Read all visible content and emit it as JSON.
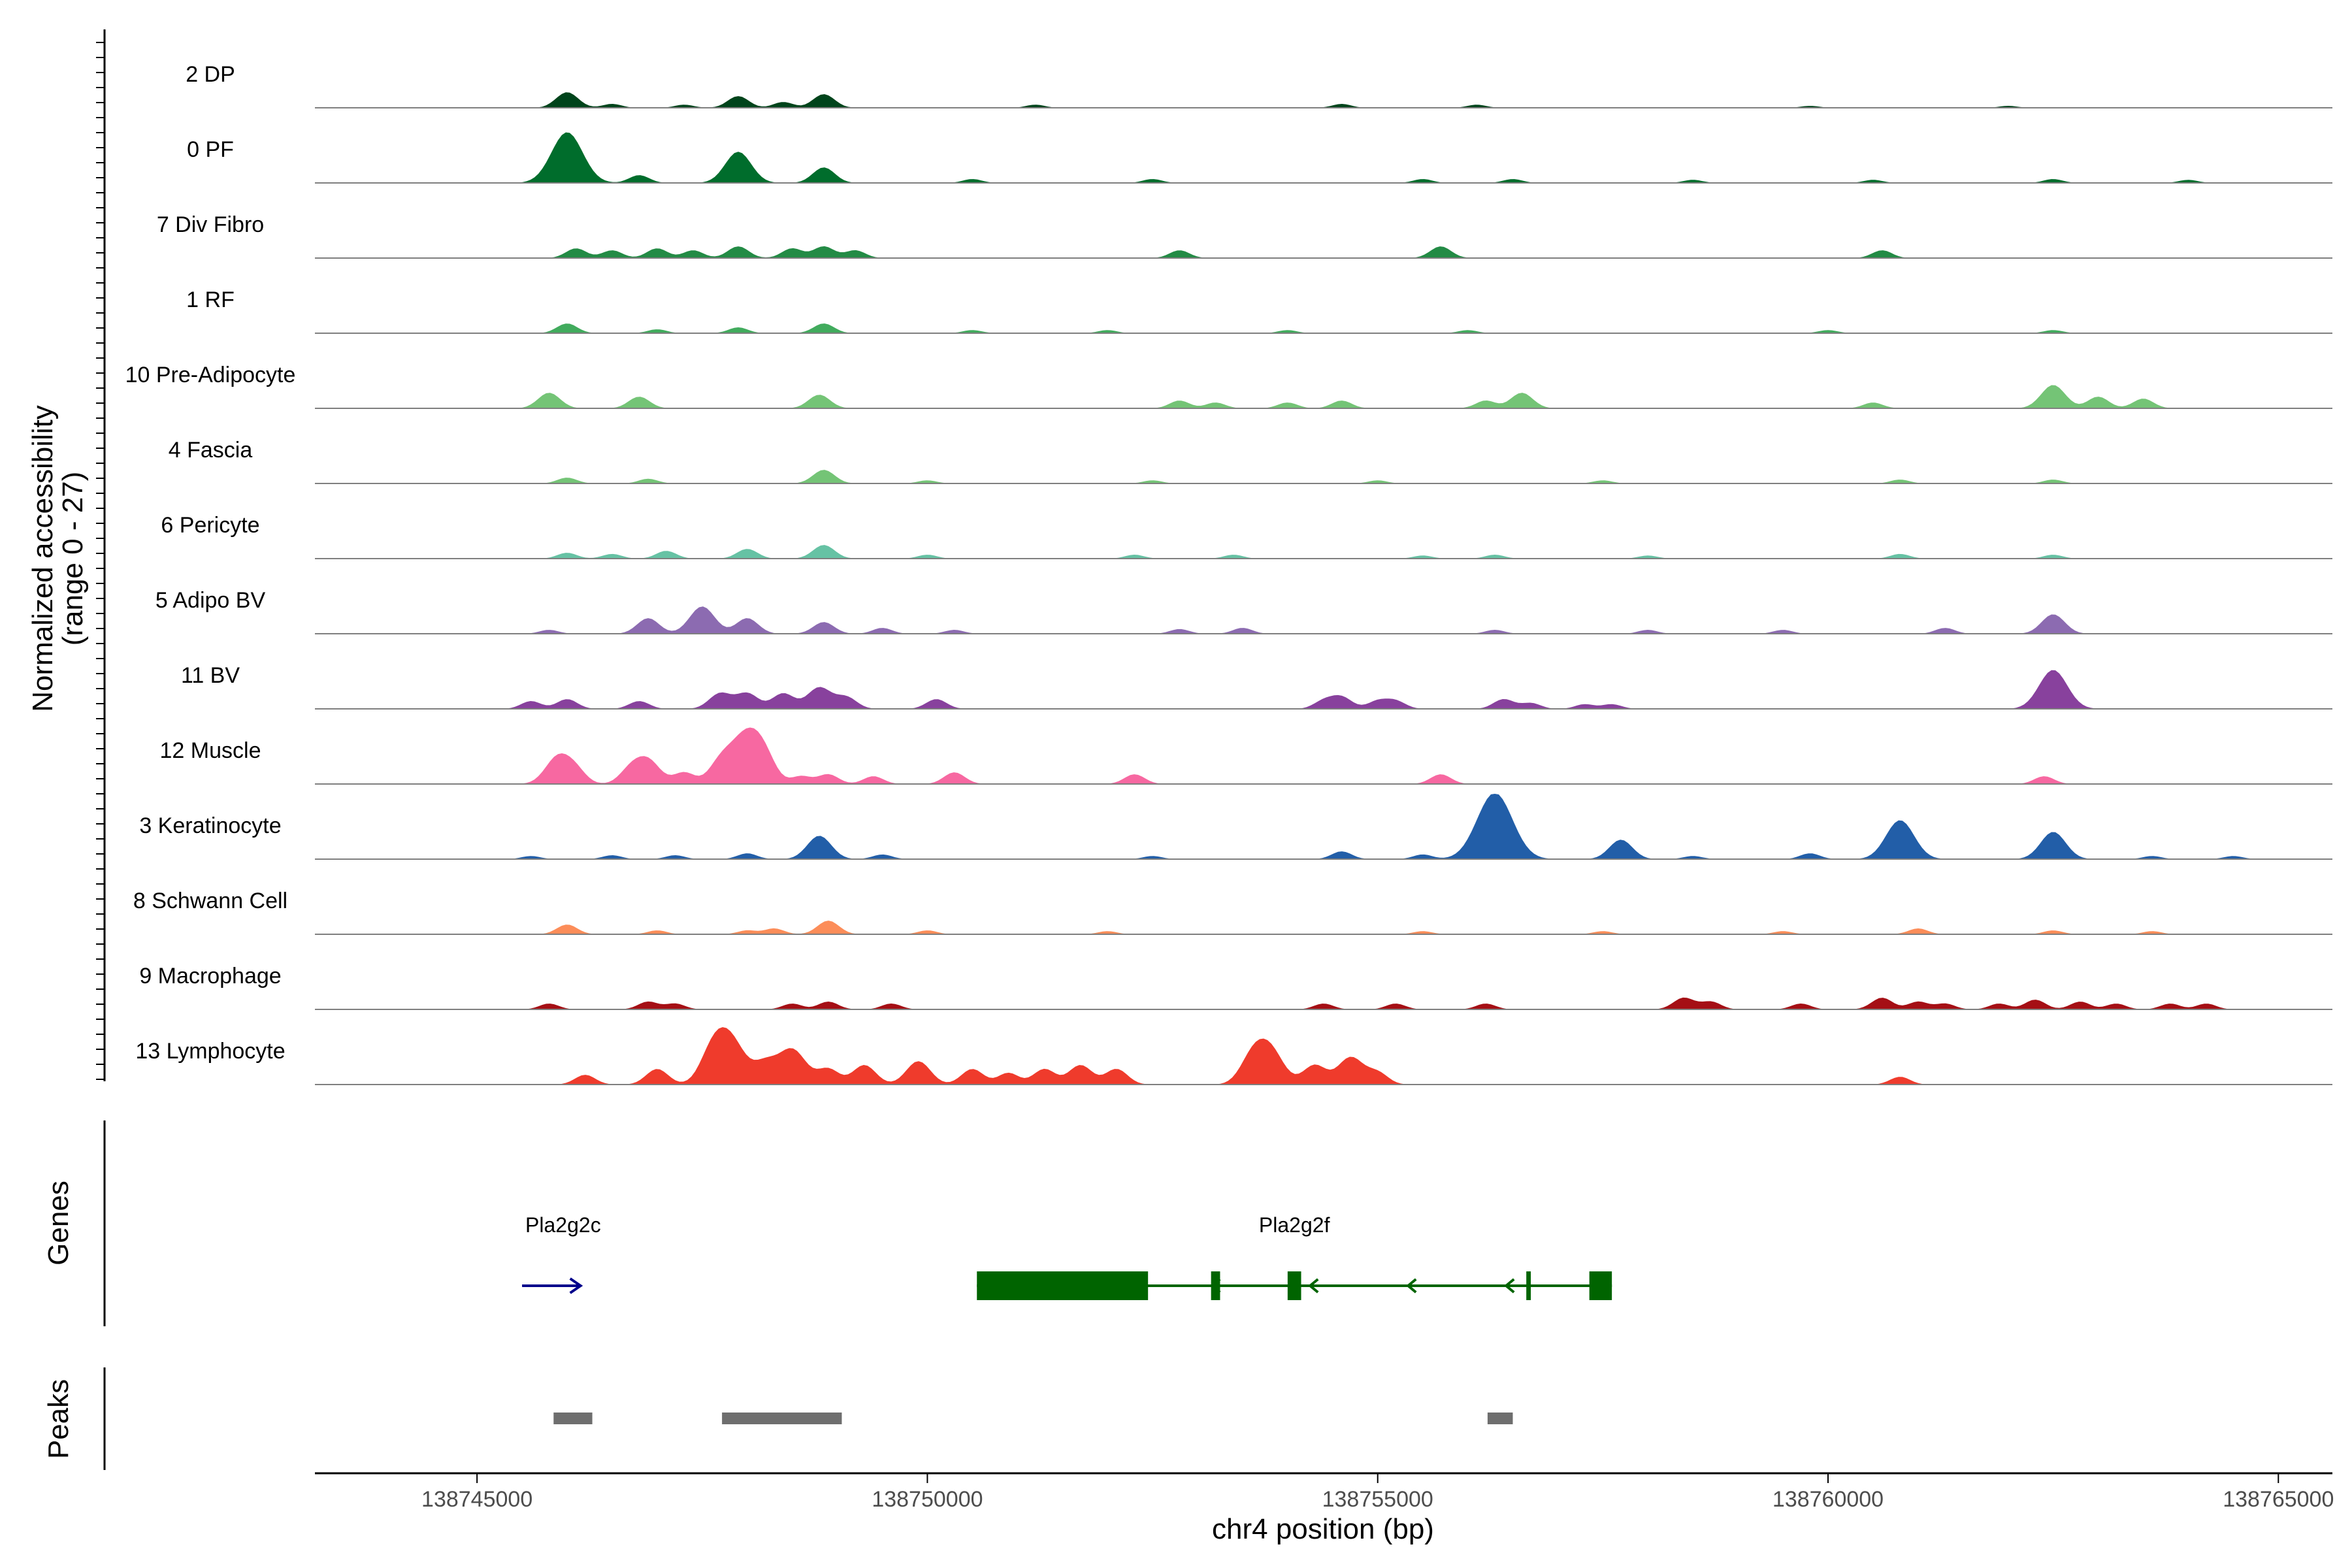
{
  "chart_data": {
    "type": "area",
    "title": "",
    "ylabel": "Normalized accessibility (range 0 - 27)",
    "ylabel_lines": [
      "Normalized accessibility",
      "(range 0 - 27)"
    ],
    "y_range": [
      0,
      27
    ],
    "xlabel": "chr4 position (bp)",
    "x_range": [
      138743200,
      138765600
    ],
    "x_ticks": [
      138745000,
      138750000,
      138755000,
      138760000,
      138765000
    ],
    "x_tick_labels": [
      "138745000",
      "138750000",
      "138755000",
      "138760000",
      "138765000"
    ],
    "tracks": [
      {
        "name": "2 DP",
        "color": "#00441b",
        "peaks": [
          [
            138746000,
            4
          ],
          [
            138746500,
            1
          ],
          [
            138747300,
            0.8
          ],
          [
            138747900,
            3
          ],
          [
            138748400,
            1.5
          ],
          [
            138748850,
            3.5
          ],
          [
            138751200,
            0.8
          ],
          [
            138754600,
            1
          ],
          [
            138756100,
            0.8
          ],
          [
            138759800,
            0.5
          ],
          [
            138762000,
            0.5
          ]
        ]
      },
      {
        "name": "0 PF",
        "color": "#006d2c",
        "peaks": [
          [
            138746000,
            13
          ],
          [
            138746800,
            2
          ],
          [
            138747900,
            8
          ],
          [
            138748850,
            4
          ],
          [
            138750500,
            1
          ],
          [
            138752500,
            1
          ],
          [
            138755500,
            1
          ],
          [
            138756500,
            1
          ],
          [
            138758500,
            0.8
          ],
          [
            138760500,
            0.8
          ],
          [
            138762500,
            1
          ],
          [
            138764000,
            0.8
          ]
        ]
      },
      {
        "name": "7 Div Fibro",
        "color": "#238b45",
        "peaks": [
          [
            138746100,
            2.5
          ],
          [
            138746500,
            2
          ],
          [
            138747000,
            2.5
          ],
          [
            138747400,
            2
          ],
          [
            138747900,
            3
          ],
          [
            138748500,
            2.5
          ],
          [
            138748850,
            3
          ],
          [
            138749200,
            2
          ],
          [
            138752800,
            2
          ],
          [
            138755700,
            3
          ],
          [
            138760600,
            2
          ]
        ]
      },
      {
        "name": "1 RF",
        "color": "#41ab5d",
        "peaks": [
          [
            138746000,
            2.5
          ],
          [
            138747000,
            1
          ],
          [
            138747900,
            1.5
          ],
          [
            138748850,
            2.5
          ],
          [
            138750500,
            0.8
          ],
          [
            138752000,
            0.8
          ],
          [
            138754000,
            0.8
          ],
          [
            138756000,
            0.8
          ],
          [
            138760000,
            0.8
          ],
          [
            138762500,
            0.8
          ]
        ]
      },
      {
        "name": "10 Pre-Adipocyte",
        "color": "#74c476",
        "peaks": [
          [
            138745800,
            4
          ],
          [
            138746800,
            3
          ],
          [
            138748800,
            3.5
          ],
          [
            138752800,
            2
          ],
          [
            138753200,
            1.5
          ],
          [
            138754000,
            1.5
          ],
          [
            138754600,
            2
          ],
          [
            138756200,
            2
          ],
          [
            138756600,
            4
          ],
          [
            138760500,
            1.5
          ],
          [
            138762500,
            6
          ],
          [
            138763000,
            3
          ],
          [
            138763500,
            2.5
          ]
        ]
      },
      {
        "name": "4 Fascia",
        "color": "#74c476",
        "peaks": [
          [
            138746000,
            1.5
          ],
          [
            138746900,
            1.2
          ],
          [
            138748850,
            3.5
          ],
          [
            138750000,
            0.8
          ],
          [
            138752500,
            0.8
          ],
          [
            138755000,
            0.8
          ],
          [
            138757500,
            0.8
          ],
          [
            138760800,
            1
          ],
          [
            138762500,
            1
          ]
        ]
      },
      {
        "name": "6 Pericyte",
        "color": "#66c2a4",
        "peaks": [
          [
            138746000,
            1.5
          ],
          [
            138746500,
            1.2
          ],
          [
            138747100,
            2
          ],
          [
            138748000,
            2.5
          ],
          [
            138748850,
            3.5
          ],
          [
            138750000,
            1
          ],
          [
            138752300,
            1
          ],
          [
            138753400,
            1
          ],
          [
            138755500,
            0.8
          ],
          [
            138756300,
            1
          ],
          [
            138758000,
            0.8
          ],
          [
            138760800,
            1.2
          ],
          [
            138762500,
            1
          ]
        ]
      },
      {
        "name": "5 Adipo BV",
        "color": "#8c6bb1",
        "peaks": [
          [
            138745800,
            1
          ],
          [
            138746900,
            4
          ],
          [
            138747500,
            7
          ],
          [
            138748000,
            4
          ],
          [
            138748850,
            3
          ],
          [
            138749500,
            1.5
          ],
          [
            138750300,
            1
          ],
          [
            138752800,
            1.2
          ],
          [
            138753500,
            1.5
          ],
          [
            138756300,
            1
          ],
          [
            138758000,
            1
          ],
          [
            138759500,
            1
          ],
          [
            138761300,
            1.5
          ],
          [
            138762500,
            5
          ]
        ]
      },
      {
        "name": "11 BV",
        "color": "#88419d",
        "peaks": [
          [
            138745600,
            2
          ],
          [
            138746000,
            2.5
          ],
          [
            138746800,
            2
          ],
          [
            138747700,
            4
          ],
          [
            138748000,
            4
          ],
          [
            138748400,
            4
          ],
          [
            138748800,
            5.5
          ],
          [
            138749100,
            3
          ],
          [
            138750100,
            2.5
          ],
          [
            138754400,
            2
          ],
          [
            138754600,
            3
          ],
          [
            138755000,
            2
          ],
          [
            138755200,
            2
          ],
          [
            138756400,
            2.5
          ],
          [
            138756700,
            1.5
          ],
          [
            138757300,
            1.2
          ],
          [
            138757600,
            1.2
          ],
          [
            138762500,
            10
          ]
        ]
      },
      {
        "name": "12 Muscle",
        "color": "#f768a1",
        "peaks": [
          [
            138745900,
            7
          ],
          [
            138746100,
            3
          ],
          [
            138746700,
            3.5
          ],
          [
            138746900,
            6
          ],
          [
            138747300,
            3
          ],
          [
            138747700,
            5
          ],
          [
            138748000,
            13
          ],
          [
            138748200,
            4
          ],
          [
            138748600,
            2
          ],
          [
            138748900,
            2.5
          ],
          [
            138749400,
            2
          ],
          [
            138750300,
            3
          ],
          [
            138752300,
            2.5
          ],
          [
            138755700,
            2.5
          ],
          [
            138762400,
            2
          ]
        ]
      },
      {
        "name": "3 Keratinocyte",
        "color": "#225ea8",
        "peaks": [
          [
            138745600,
            0.8
          ],
          [
            138746500,
            1
          ],
          [
            138747200,
            1
          ],
          [
            138748000,
            1.5
          ],
          [
            138748800,
            6
          ],
          [
            138749500,
            1.2
          ],
          [
            138752500,
            0.8
          ],
          [
            138754600,
            2
          ],
          [
            138755500,
            1.2
          ],
          [
            138756300,
            17
          ],
          [
            138757700,
            5
          ],
          [
            138758500,
            0.8
          ],
          [
            138759800,
            1.5
          ],
          [
            138760800,
            10
          ],
          [
            138762500,
            7
          ],
          [
            138763600,
            0.8
          ],
          [
            138764500,
            0.8
          ]
        ]
      },
      {
        "name": "8 Schwann Cell",
        "color": "#fc8d59",
        "peaks": [
          [
            138746000,
            2.5
          ],
          [
            138747000,
            1
          ],
          [
            138748000,
            1
          ],
          [
            138748300,
            1.5
          ],
          [
            138748900,
            3.5
          ],
          [
            138750000,
            1
          ],
          [
            138752000,
            0.8
          ],
          [
            138755500,
            0.8
          ],
          [
            138757500,
            0.8
          ],
          [
            138759500,
            0.8
          ],
          [
            138761000,
            1.5
          ],
          [
            138762500,
            1
          ],
          [
            138763600,
            0.8
          ]
        ]
      },
      {
        "name": "9 Macrophage",
        "color": "#a50f15",
        "peaks": [
          [
            138745800,
            1.5
          ],
          [
            138746900,
            2
          ],
          [
            138747200,
            1.5
          ],
          [
            138748500,
            1.5
          ],
          [
            138748900,
            2
          ],
          [
            138749600,
            1.5
          ],
          [
            138754400,
            1.5
          ],
          [
            138755200,
            1.5
          ],
          [
            138756200,
            1.5
          ],
          [
            138758400,
            3
          ],
          [
            138758700,
            2
          ],
          [
            138759700,
            1.5
          ],
          [
            138760600,
            3
          ],
          [
            138761000,
            2
          ],
          [
            138761300,
            1.5
          ],
          [
            138761900,
            1.5
          ],
          [
            138762300,
            2.5
          ],
          [
            138762800,
            2
          ],
          [
            138763200,
            1.5
          ],
          [
            138763800,
            1.5
          ],
          [
            138764200,
            1.5
          ]
        ]
      },
      {
        "name": "13 Lymphocyte",
        "color": "#ef3b2c",
        "peaks": [
          [
            138746200,
            2.5
          ],
          [
            138747000,
            4
          ],
          [
            138747600,
            6
          ],
          [
            138747800,
            12
          ],
          [
            138748200,
            5
          ],
          [
            138748500,
            9
          ],
          [
            138748900,
            4
          ],
          [
            138749300,
            5
          ],
          [
            138749900,
            6
          ],
          [
            138750500,
            4
          ],
          [
            138750900,
            3
          ],
          [
            138751300,
            4
          ],
          [
            138751700,
            5
          ],
          [
            138752100,
            4
          ],
          [
            138753600,
            6
          ],
          [
            138753800,
            9
          ],
          [
            138754300,
            5
          ],
          [
            138754700,
            7
          ],
          [
            138755000,
            3
          ],
          [
            138760800,
            2
          ]
        ]
      }
    ]
  },
  "genes": [
    {
      "name": "Pla2g2c",
      "strand": "+",
      "start": 138745500,
      "end": 138746150,
      "color": "#00008b",
      "exons": []
    },
    {
      "name": "Pla2g2f",
      "strand": "-",
      "start": 138750550,
      "end": 138757600,
      "color": "#006400",
      "exons": [
        [
          138750550,
          138752450
        ],
        [
          138753150,
          138753250
        ],
        [
          138754000,
          138754150
        ],
        [
          138756650,
          138756700
        ],
        [
          138757350,
          138757600
        ]
      ]
    }
  ],
  "peak_regions": [
    [
      138745850,
      138746280
    ],
    [
      138747720,
      138749050
    ],
    [
      138756220,
      138756500
    ]
  ],
  "panels": {
    "genes_title": "Genes",
    "peaks_title": "Peaks"
  }
}
